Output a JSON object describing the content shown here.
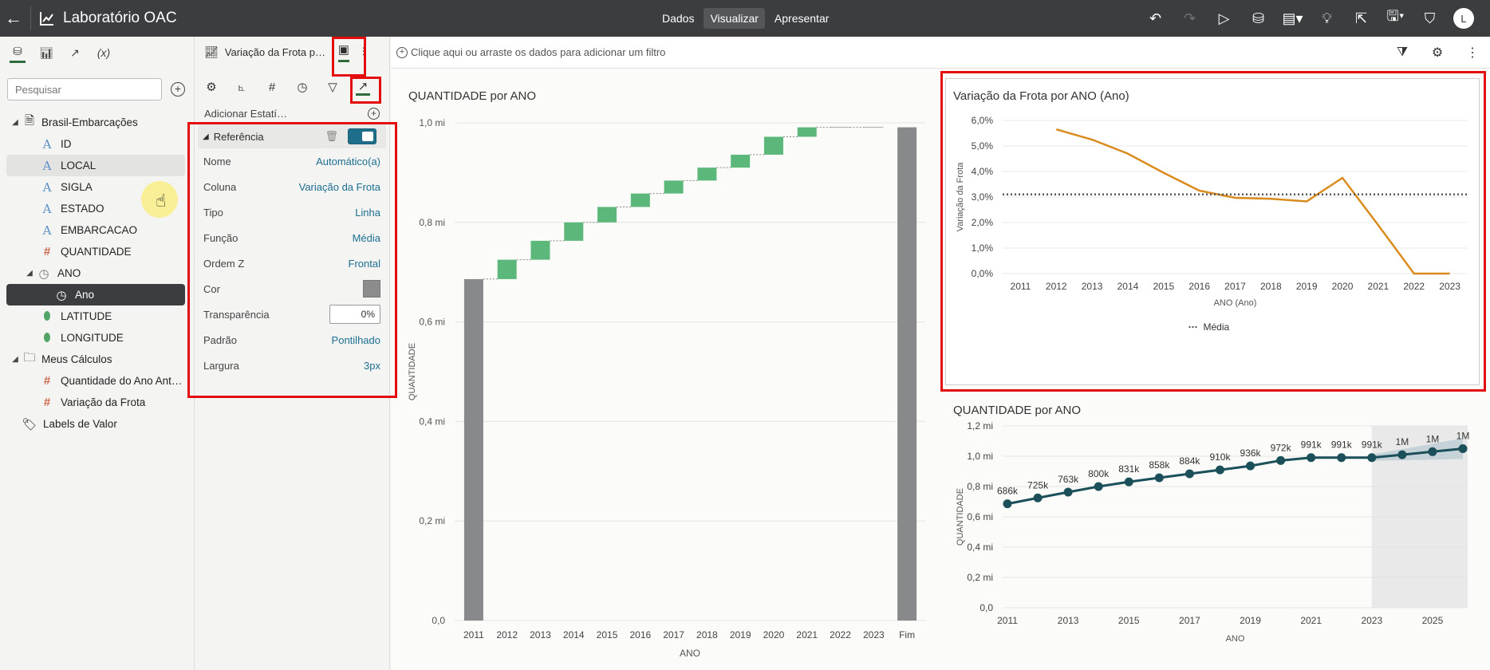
{
  "topbar": {
    "title": "Laboratório OAC",
    "tabs": [
      "Dados",
      "Visualizar",
      "Apresentar"
    ],
    "active_tab": "Visualizar",
    "avatar_initial": "L"
  },
  "left_panel": {
    "search_placeholder": "Pesquisar",
    "tree": [
      {
        "label": "Brasil-Embarcações",
        "type": "dataset",
        "level": 0
      },
      {
        "label": "ID",
        "type": "attribute",
        "level": 1
      },
      {
        "label": "LOCAL",
        "type": "attribute",
        "level": 1
      },
      {
        "label": "SIGLA",
        "type": "attribute",
        "level": 1
      },
      {
        "label": "ESTADO",
        "type": "attribute",
        "level": 1
      },
      {
        "label": "EMBARCACAO",
        "type": "attribute",
        "level": 1
      },
      {
        "label": "QUANTIDADE",
        "type": "measure",
        "level": 1
      },
      {
        "label": "ANO",
        "type": "time",
        "level": 1
      },
      {
        "label": "Ano",
        "type": "time",
        "level": 2
      },
      {
        "label": "LATITUDE",
        "type": "geo",
        "level": 1
      },
      {
        "label": "LONGITUDE",
        "type": "geo",
        "level": 1
      },
      {
        "label": "Meus Cálculos",
        "type": "folder",
        "level": 0
      },
      {
        "label": "Quantidade do Ano Ant…",
        "type": "measure",
        "level": 1
      },
      {
        "label": "Variação da Frota",
        "type": "measure",
        "level": 1
      },
      {
        "label": "Labels de Valor",
        "type": "tag",
        "level": 0
      }
    ]
  },
  "props": {
    "viz_name": "Variação da Frota p…",
    "add_stat": "Adicionar Estatí…",
    "section": "Referência",
    "rows": [
      {
        "k": "Nome",
        "v": "Automático(a)"
      },
      {
        "k": "Coluna",
        "v": "Variação da Frota"
      },
      {
        "k": "Tipo",
        "v": "Linha"
      },
      {
        "k": "Função",
        "v": "Média"
      },
      {
        "k": "Ordem Z",
        "v": "Frontal"
      },
      {
        "k": "Cor",
        "v": ""
      },
      {
        "k": "Transparência",
        "v": "0%"
      },
      {
        "k": "Padrão",
        "v": "Pontilhado"
      },
      {
        "k": "Largura",
        "v": "3px"
      }
    ],
    "color": "#8c8c8c"
  },
  "filter_bar": {
    "placeholder": "Clique aqui ou arraste os dados para adicionar um filtro"
  },
  "colors": {
    "accent_red": "#e40d0d",
    "line_orange": "#d98b1e",
    "waterfall_green": "#5cb87a",
    "waterfall_grey": "#87898b",
    "series_teal": "#1b4f5a"
  },
  "chart_data": [
    {
      "type": "bar",
      "subtype": "waterfall",
      "title": "QUANTIDADE por ANO",
      "xlabel": "ANO",
      "ylabel": "QUANTIDADE",
      "categories": [
        "2011",
        "2012",
        "2013",
        "2014",
        "2015",
        "2016",
        "2017",
        "2018",
        "2019",
        "2020",
        "2021",
        "2022",
        "2023",
        "Fim"
      ],
      "values": [
        686000,
        39000,
        38000,
        37000,
        31000,
        27000,
        26000,
        26000,
        26000,
        36000,
        19000,
        0,
        0,
        991000
      ],
      "yticks": [
        "0,0",
        "0,2 mi",
        "0,4 mi",
        "0,6 mi",
        "0,8 mi",
        "1,0 mi"
      ],
      "ylim": [
        0,
        1000000
      ]
    },
    {
      "type": "line",
      "title": "Variação da Frota por ANO (Ano)",
      "xlabel": "ANO (Ano)",
      "ylabel": "Variação da Frota",
      "x": [
        "2011",
        "2012",
        "2013",
        "2014",
        "2015",
        "2016",
        "2017",
        "2018",
        "2019",
        "2020",
        "2021",
        "2022",
        "2023"
      ],
      "values": [
        null,
        5.65,
        5.25,
        4.7,
        3.95,
        3.25,
        2.97,
        2.93,
        2.83,
        3.75,
        1.9,
        0.0,
        0.0
      ],
      "yticks": [
        "0,0%",
        "1,0%",
        "2,0%",
        "3,0%",
        "4,0%",
        "5,0%",
        "6,0%"
      ],
      "ylim": [
        0,
        6
      ],
      "reference_line": {
        "label": "Média",
        "value": 3.1,
        "style": "dotted"
      },
      "legend": [
        "Média"
      ]
    },
    {
      "type": "line",
      "subtype": "forecast",
      "title": "QUANTIDADE por ANO",
      "xlabel": "ANO",
      "ylabel": "QUANTIDADE",
      "x": [
        2011,
        2012,
        2013,
        2014,
        2015,
        2016,
        2017,
        2018,
        2019,
        2020,
        2021,
        2022,
        2023,
        2024,
        2025,
        2026
      ],
      "values": [
        686000,
        725000,
        763000,
        800000,
        831000,
        858000,
        884000,
        910000,
        936000,
        972000,
        991000,
        991000,
        991000,
        1010000,
        1030000,
        1050000
      ],
      "labels": [
        "686k",
        "725k",
        "763k",
        "800k",
        "831k",
        "858k",
        "884k",
        "910k",
        "936k",
        "972k",
        "991k",
        "991k",
        "991k",
        "1M",
        "1M",
        "1M"
      ],
      "xticks": [
        "2011",
        "2013",
        "2015",
        "2017",
        "2019",
        "2021",
        "2023",
        "2025"
      ],
      "yticks": [
        "0,0",
        "0,2 mi",
        "0,4 mi",
        "0,6 mi",
        "0,8 mi",
        "1,0 mi",
        "1,2 mi"
      ],
      "ylim": [
        0,
        1200000
      ],
      "forecast_from": 2023
    }
  ]
}
